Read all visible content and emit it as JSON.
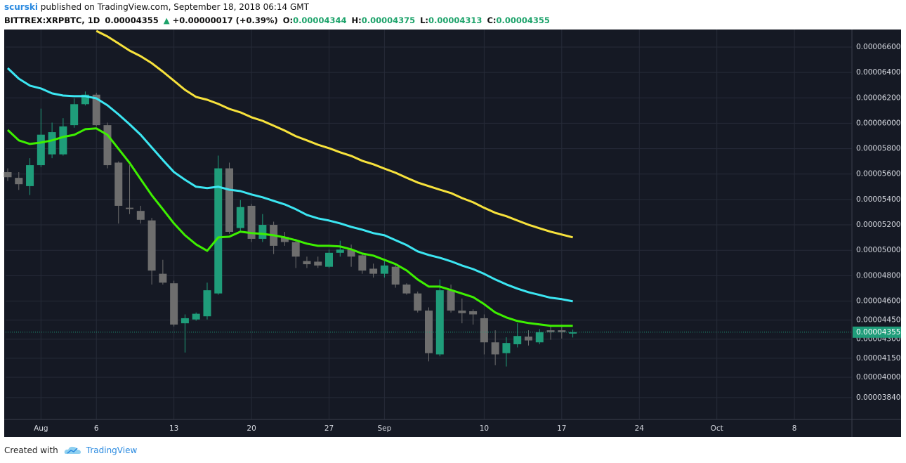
{
  "header": {
    "publisher": "scurski",
    "published": "published on TradingView.com, September 18, 2018 06:14 GMT",
    "symbol": "BITTREX:XRPBTC, 1D",
    "last": "0.00004355",
    "arrow": "▲",
    "change": "+0.00000017 (+0.39%)",
    "open_label": "O:",
    "open": "0.00004344",
    "high_label": "H:",
    "high": "0.00004375",
    "low_label": "L:",
    "low": "0.00004313",
    "close_label": "C:",
    "close": "0.00004355"
  },
  "footer": {
    "text": "Created with",
    "brand": "TradingView"
  },
  "chart_data": {
    "type": "candlestick",
    "x": [
      "2018-07-29",
      "2018-07-30",
      "2018-07-31",
      "2018-08-01",
      "2018-08-02",
      "2018-08-03",
      "2018-08-04",
      "2018-08-05",
      "2018-08-06",
      "2018-08-07",
      "2018-08-08",
      "2018-08-09",
      "2018-08-10",
      "2018-08-11",
      "2018-08-12",
      "2018-08-13",
      "2018-08-14",
      "2018-08-15",
      "2018-08-16",
      "2018-08-17",
      "2018-08-18",
      "2018-08-19",
      "2018-08-20",
      "2018-08-21",
      "2018-08-22",
      "2018-08-23",
      "2018-08-24",
      "2018-08-25",
      "2018-08-26",
      "2018-08-27",
      "2018-08-28",
      "2018-08-29",
      "2018-08-30",
      "2018-08-31",
      "2018-09-01",
      "2018-09-02",
      "2018-09-03",
      "2018-09-04",
      "2018-09-05",
      "2018-09-06",
      "2018-09-07",
      "2018-09-08",
      "2018-09-09",
      "2018-09-10",
      "2018-09-11",
      "2018-09-12",
      "2018-09-13",
      "2018-09-14",
      "2018-09-15",
      "2018-09-16",
      "2018-09-17",
      "2018-09-18"
    ],
    "open": [
      5.615e-05,
      5.57e-05,
      5.505e-05,
      5.67e-05,
      5.755e-05,
      5.755e-05,
      5.985e-05,
      6.15e-05,
      6.225e-05,
      5.985e-05,
      5.69e-05,
      5.335e-05,
      5.31e-05,
      5.235e-05,
      4.815e-05,
      4.74e-05,
      4.425e-05,
      4.455e-05,
      4.48e-05,
      4.66e-05,
      5.645e-05,
      5.175e-05,
      5.35e-05,
      5.09e-05,
      5.2e-05,
      5.105e-05,
      5.065e-05,
      4.915e-05,
      4.91e-05,
      4.87e-05,
      4.98e-05,
      5.005e-05,
      4.96e-05,
      4.855e-05,
      4.815e-05,
      4.87e-05,
      4.73e-05,
      4.66e-05,
      4.525e-05,
      4.18e-05,
      4.685e-05,
      4.525e-05,
      4.52e-05,
      4.465e-05,
      4.275e-05,
      4.19e-05,
      4.26e-05,
      4.32e-05,
      4.275e-05,
      4.37e-05,
      4.37e-05,
      4.344e-05
    ],
    "high": [
      5.645e-05,
      5.615e-05,
      5.725e-05,
      6.115e-05,
      6.005e-05,
      6.04e-05,
      6.195e-05,
      6.25e-05,
      6.24e-05,
      6.005e-05,
      5.7e-05,
      5.67e-05,
      5.35e-05,
      5.255e-05,
      4.925e-05,
      4.76e-05,
      4.495e-05,
      4.51e-05,
      4.745e-05,
      5.745e-05,
      5.69e-05,
      5.395e-05,
      5.365e-05,
      5.285e-05,
      5.225e-05,
      5.145e-05,
      5.09e-05,
      4.95e-05,
      4.95e-05,
      5.005e-05,
      5.075e-05,
      5.045e-05,
      4.97e-05,
      4.895e-05,
      4.915e-05,
      4.88e-05,
      4.74e-05,
      4.675e-05,
      4.55e-05,
      4.77e-05,
      4.73e-05,
      4.62e-05,
      4.535e-05,
      4.495e-05,
      4.37e-05,
      4.315e-05,
      4.425e-05,
      4.37e-05,
      4.38e-05,
      4.4e-05,
      4.415e-05,
      4.375e-05
    ],
    "low": [
      5.545e-05,
      5.475e-05,
      5.435e-05,
      5.655e-05,
      5.725e-05,
      5.745e-05,
      5.965e-05,
      6.14e-05,
      5.975e-05,
      5.645e-05,
      5.21e-05,
      5.285e-05,
      5.21e-05,
      4.73e-05,
      4.73e-05,
      4.4e-05,
      4.195e-05,
      4.445e-05,
      4.455e-05,
      4.65e-05,
      5.13e-05,
      5.145e-05,
      5.065e-05,
      5.065e-05,
      4.97e-05,
      5.035e-05,
      4.86e-05,
      4.86e-05,
      4.86e-05,
      4.86e-05,
      4.95e-05,
      4.87e-05,
      4.815e-05,
      4.785e-05,
      4.785e-05,
      4.705e-05,
      4.65e-05,
      4.51e-05,
      4.125e-05,
      4.165e-05,
      4.51e-05,
      4.425e-05,
      4.415e-05,
      4.18e-05,
      4.095e-05,
      4.085e-05,
      4.235e-05,
      4.25e-05,
      4.26e-05,
      4.295e-05,
      4.305e-05,
      4.313e-05
    ],
    "close": [
      5.575e-05,
      5.52e-05,
      5.67e-05,
      5.91e-05,
      5.93e-05,
      5.975e-05,
      6.15e-05,
      6.225e-05,
      5.985e-05,
      5.67e-05,
      5.35e-05,
      5.325e-05,
      5.24e-05,
      4.84e-05,
      4.745e-05,
      4.415e-05,
      4.465e-05,
      4.5e-05,
      4.685e-05,
      5.645e-05,
      5.145e-05,
      5.34e-05,
      5.09e-05,
      5.2e-05,
      5.035e-05,
      5.065e-05,
      4.95e-05,
      4.89e-05,
      4.88e-05,
      4.98e-05,
      5.005e-05,
      4.95e-05,
      4.84e-05,
      4.815e-05,
      4.88e-05,
      4.73e-05,
      4.66e-05,
      4.525e-05,
      4.19e-05,
      4.685e-05,
      4.525e-05,
      4.505e-05,
      4.495e-05,
      4.275e-05,
      4.18e-05,
      4.27e-05,
      4.325e-05,
      4.29e-05,
      4.355e-05,
      4.355e-05,
      4.355e-05,
      4.355e-05
    ],
    "up_color": "#1f9d7a",
    "down_color": "#6e6e6e",
    "lines": [
      {
        "color": "#3ef000",
        "values": [
          5.947e-05,
          5.865e-05,
          5.837e-05,
          5.848e-05,
          5.865e-05,
          5.892e-05,
          5.909e-05,
          5.953e-05,
          5.959e-05,
          5.909e-05,
          5.798e-05,
          5.688e-05,
          5.56e-05,
          5.433e-05,
          5.323e-05,
          5.212e-05,
          5.118e-05,
          5.046e-05,
          4.996e-05,
          5.101e-05,
          5.107e-05,
          5.146e-05,
          5.135e-05,
          5.129e-05,
          5.118e-05,
          5.101e-05,
          5.079e-05,
          5.052e-05,
          5.035e-05,
          5.035e-05,
          5.03e-05,
          5.007e-05,
          4.974e-05,
          4.958e-05,
          4.924e-05,
          4.891e-05,
          4.841e-05,
          4.77e-05,
          4.714e-05,
          4.714e-05,
          4.687e-05,
          4.659e-05,
          4.631e-05,
          4.576e-05,
          4.51e-05,
          4.471e-05,
          4.443e-05,
          4.427e-05,
          4.416e-05,
          4.405e-05,
          4.405e-05,
          4.405e-05
        ]
      },
      {
        "color": "#3ce6f2",
        "values": [
          6.434e-05,
          6.351e-05,
          6.296e-05,
          6.274e-05,
          6.235e-05,
          6.218e-05,
          6.213e-05,
          6.213e-05,
          6.196e-05,
          6.141e-05,
          6.069e-05,
          5.992e-05,
          5.909e-05,
          5.809e-05,
          5.71e-05,
          5.616e-05,
          5.555e-05,
          5.5e-05,
          5.489e-05,
          5.5e-05,
          5.477e-05,
          5.466e-05,
          5.439e-05,
          5.417e-05,
          5.389e-05,
          5.361e-05,
          5.323e-05,
          5.278e-05,
          5.251e-05,
          5.234e-05,
          5.212e-05,
          5.184e-05,
          5.162e-05,
          5.135e-05,
          5.118e-05,
          5.079e-05,
          5.041e-05,
          4.991e-05,
          4.963e-05,
          4.941e-05,
          4.913e-05,
          4.88e-05,
          4.852e-05,
          4.814e-05,
          4.77e-05,
          4.731e-05,
          4.698e-05,
          4.67e-05,
          4.648e-05,
          4.626e-05,
          4.615e-05,
          4.598e-05
        ]
      },
      {
        "color": "#f7e23c",
        "values": [
          null,
          null,
          null,
          null,
          null,
          null,
          null,
          null,
          6.727e-05,
          6.683e-05,
          6.628e-05,
          6.572e-05,
          6.528e-05,
          6.473e-05,
          6.406e-05,
          6.335e-05,
          6.263e-05,
          6.207e-05,
          6.185e-05,
          6.152e-05,
          6.113e-05,
          6.086e-05,
          6.047e-05,
          6.019e-05,
          5.981e-05,
          5.942e-05,
          5.898e-05,
          5.865e-05,
          5.831e-05,
          5.804e-05,
          5.771e-05,
          5.743e-05,
          5.704e-05,
          5.677e-05,
          5.643e-05,
          5.61e-05,
          5.571e-05,
          5.533e-05,
          5.505e-05,
          5.477e-05,
          5.45e-05,
          5.411e-05,
          5.378e-05,
          5.334e-05,
          5.295e-05,
          5.268e-05,
          5.234e-05,
          5.201e-05,
          5.173e-05,
          5.146e-05,
          5.124e-05,
          5.102e-05
        ]
      }
    ],
    "last_price": {
      "value": 4.355e-05,
      "label": "0.00004355"
    },
    "xlim": [
      "2018-07-29",
      "2018-10-13"
    ],
    "xticks": [
      {
        "value": "2018-08-01",
        "label": "Aug"
      },
      {
        "value": "2018-08-06",
        "label": "6"
      },
      {
        "value": "2018-08-13",
        "label": "13"
      },
      {
        "value": "2018-08-20",
        "label": "20"
      },
      {
        "value": "2018-08-27",
        "label": "27"
      },
      {
        "value": "2018-09-01",
        "label": "Sep"
      },
      {
        "value": "2018-09-10",
        "label": "10"
      },
      {
        "value": "2018-09-17",
        "label": "17"
      },
      {
        "value": "2018-09-24",
        "label": "24"
      },
      {
        "value": "2018-10-01",
        "label": "Oct"
      },
      {
        "value": "2018-10-08",
        "label": "8"
      }
    ],
    "ylim": [
      3.668e-05,
      6.738e-05
    ],
    "yticks": [
      {
        "value": 6.6e-05,
        "label": "0.00006600"
      },
      {
        "value": 6.4e-05,
        "label": "0.00006400"
      },
      {
        "value": 6.2e-05,
        "label": "0.00006200"
      },
      {
        "value": 6e-05,
        "label": "0.00006000"
      },
      {
        "value": 5.8e-05,
        "label": "0.00005800"
      },
      {
        "value": 5.6e-05,
        "label": "0.00005600"
      },
      {
        "value": 5.4e-05,
        "label": "0.00005400"
      },
      {
        "value": 5.2e-05,
        "label": "0.00005200"
      },
      {
        "value": 5e-05,
        "label": "0.00005000"
      },
      {
        "value": 4.8e-05,
        "label": "0.00004800"
      },
      {
        "value": 4.6e-05,
        "label": "0.00004600"
      },
      {
        "value": 4.45e-05,
        "label": "0.00004450"
      },
      {
        "value": 4.3e-05,
        "label": "0.00004300"
      },
      {
        "value": 4.15e-05,
        "label": "0.00004150"
      },
      {
        "value": 4e-05,
        "label": "0.00004000"
      },
      {
        "value": 3.84e-05,
        "label": "0.00003840"
      }
    ],
    "grid": true
  }
}
